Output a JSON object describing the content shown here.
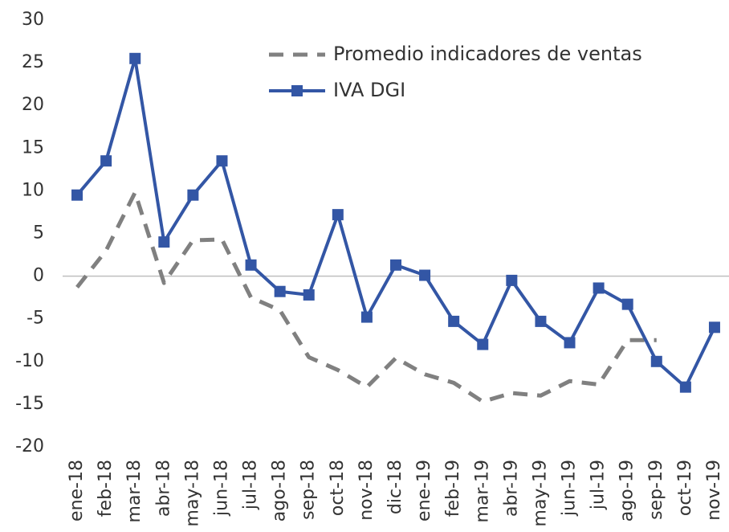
{
  "chart_data": {
    "type": "line",
    "categories": [
      "ene-18",
      "feb-18",
      "mar-18",
      "abr-18",
      "may-18",
      "jun-18",
      "jul-18",
      "ago-18",
      "sep-18",
      "oct-18",
      "nov-18",
      "dic-18",
      "ene-19",
      "feb-19",
      "mar-19",
      "abr-19",
      "may-19",
      "jun-19",
      "jul-19",
      "ago-19",
      "sep-19",
      "oct-19",
      "nov-19"
    ],
    "series": [
      {
        "name": "Promedio indicadores de ventas",
        "color": "#808080",
        "style": "dashed",
        "values": [
          -1.3,
          3,
          9.8,
          -0.8,
          4.2,
          4.3,
          -2.5,
          -4,
          -9.5,
          -11,
          -13,
          -9.6,
          -11.5,
          -12.5,
          -14.7,
          -13.7,
          -14,
          -12.3,
          -12.7,
          -7.5,
          -7.5,
          null,
          null
        ]
      },
      {
        "name": "IVA DGI",
        "color": "#3356a5",
        "style": "solid",
        "marker": "square",
        "values": [
          9.5,
          13.5,
          25.5,
          4,
          9.5,
          13.5,
          1.3,
          -1.8,
          -2.2,
          7.2,
          -4.8,
          1.3,
          0.1,
          -5.3,
          -8,
          -0.5,
          -5.3,
          -7.8,
          -1.4,
          -3.3,
          -10,
          -13,
          -6
        ]
      }
    ],
    "ylim": [
      -20,
      30
    ],
    "yticks": [
      -20,
      -15,
      -10,
      -5,
      0,
      5,
      10,
      15,
      20,
      25,
      30
    ],
    "grid": false,
    "legend": "top"
  }
}
